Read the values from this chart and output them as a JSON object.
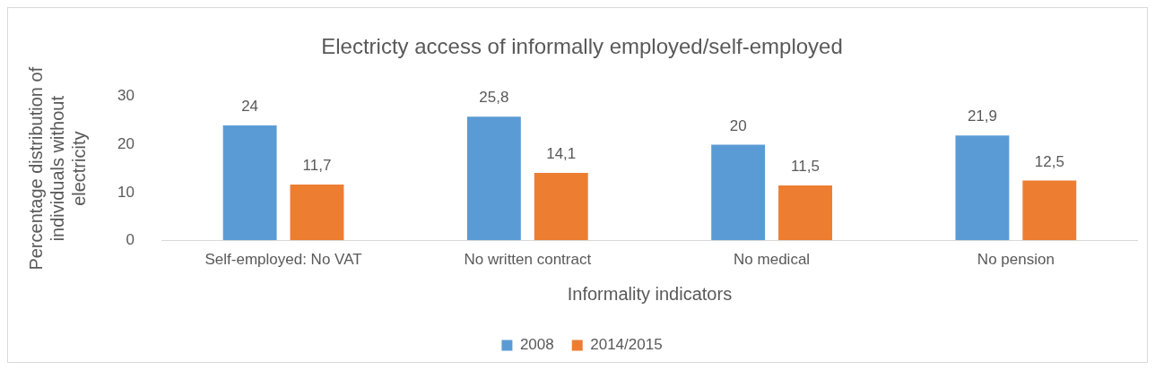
{
  "chart_data": {
    "type": "bar",
    "title": "Electricty access of informally employed/self-employed",
    "xlabel": "Informality indicators",
    "ylabel": "Percentage distribution of individuals without electricity",
    "categories": [
      "Self-employed: No VAT",
      "No written contract",
      "No medical",
      "No pension"
    ],
    "series": [
      {
        "name": "2008",
        "color": "#5b9bd5",
        "values": [
          24,
          25.8,
          20,
          21.9
        ],
        "value_labels": [
          "24",
          "25,8",
          "20",
          "21,9"
        ]
      },
      {
        "name": "2014/2015",
        "color": "#ed7d31",
        "values": [
          11.7,
          14.1,
          11.5,
          12.5
        ],
        "value_labels": [
          "11,7",
          "14,1",
          "11,5",
          "12,5"
        ]
      }
    ],
    "ylim": [
      0,
      30
    ],
    "yticks": [
      0,
      10,
      20,
      30
    ],
    "grid": false,
    "legend": "bottom"
  }
}
